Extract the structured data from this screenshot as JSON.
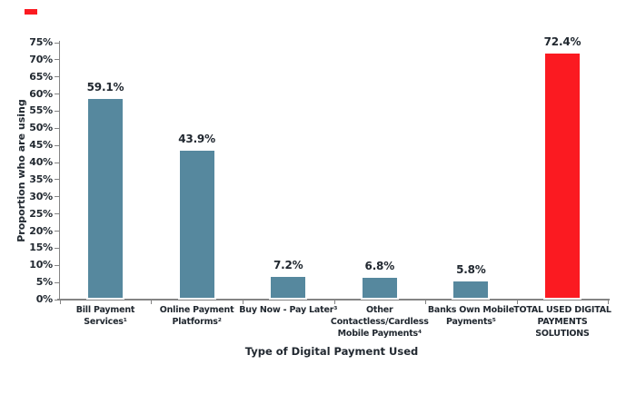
{
  "page": {
    "background": "#ffffff"
  },
  "legend": {
    "marker_color": "#FB1A21"
  },
  "chart_data": {
    "type": "bar",
    "title": "",
    "xlabel": "Type of Digital Payment Used",
    "ylabel": "Proportion who are using",
    "ylim": [
      0,
      75
    ],
    "ytick_step": 5,
    "ytick_labels": [
      "0%",
      "5%",
      "10%",
      "15%",
      "20%",
      "25%",
      "30%",
      "35%",
      "40%",
      "45%",
      "50%",
      "55%",
      "60%",
      "65%",
      "70%",
      "75%"
    ],
    "grid": false,
    "legend_position": "none",
    "categories": [
      "Bill Payment Services¹",
      "Online Payment Platforms²",
      "Buy Now - Pay Later³",
      "Other Contactless/Cardless Mobile Payments⁴",
      "Banks Own Mobile Payments⁵",
      "TOTAL USED DIGITAL PAYMENTS SOLUTIONS"
    ],
    "values": [
      59.1,
      43.9,
      7.2,
      6.8,
      5.8,
      72.4
    ],
    "bar_labels": [
      "59.1%",
      "43.9%",
      "7.2%",
      "6.8%",
      "5.8%",
      "72.4%"
    ],
    "bar_colors": [
      "#56889E",
      "#56889E",
      "#56889E",
      "#56889E",
      "#56889E",
      "#FB1A21"
    ],
    "axis_color": "#848484",
    "text_color": "#212830"
  }
}
